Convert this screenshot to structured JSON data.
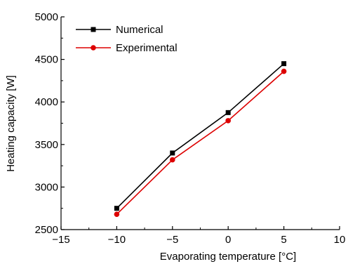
{
  "chart_data": {
    "type": "line",
    "title": "",
    "xlabel": "Evaporating temperature [°C]",
    "ylabel": "Heating capacity [W]",
    "xlim": [
      -15,
      10
    ],
    "ylim": [
      2500,
      5000
    ],
    "xticks": [
      -15,
      -10,
      -5,
      0,
      5,
      10
    ],
    "yticks": [
      2500,
      3000,
      3500,
      4000,
      4500,
      5000
    ],
    "xtick_labels": [
      "−15",
      "−10",
      "−5",
      "0",
      "5",
      "10"
    ],
    "ytick_labels": [
      "2500",
      "3000",
      "3500",
      "4000",
      "4500",
      "5000"
    ],
    "grid": false,
    "legend_position": "top-left",
    "x": [
      -10,
      -5,
      0,
      5
    ],
    "series": [
      {
        "name": "Numerical",
        "values": [
          2750,
          3400,
          3875,
          4450
        ],
        "color": "#000000",
        "marker": "square"
      },
      {
        "name": "Experimental",
        "values": [
          2680,
          3320,
          3780,
          4360
        ],
        "color": "#dd0000",
        "marker": "circle"
      }
    ]
  }
}
